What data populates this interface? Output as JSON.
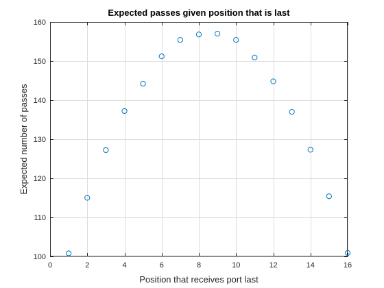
{
  "chart_data": {
    "type": "scatter",
    "title": "Expected passes given position that is last",
    "xlabel": "Position that receives port last",
    "ylabel": "Expected number of passes",
    "xlim": [
      0,
      16
    ],
    "ylim": [
      100,
      160
    ],
    "xticks": [
      0,
      2,
      4,
      6,
      8,
      10,
      12,
      14,
      16
    ],
    "yticks": [
      100,
      110,
      120,
      130,
      140,
      150,
      160
    ],
    "grid": true,
    "marker": "open-circle",
    "marker_color": "#0072BD",
    "x": [
      1,
      2,
      3,
      4,
      5,
      6,
      7,
      8,
      9,
      10,
      11,
      12,
      13,
      14,
      15,
      16
    ],
    "y": [
      100.8,
      115.0,
      127.2,
      137.2,
      144.2,
      151.2,
      155.4,
      156.8,
      157.0,
      155.4,
      150.9,
      144.8,
      137.0,
      127.3,
      115.4,
      100.9
    ]
  }
}
